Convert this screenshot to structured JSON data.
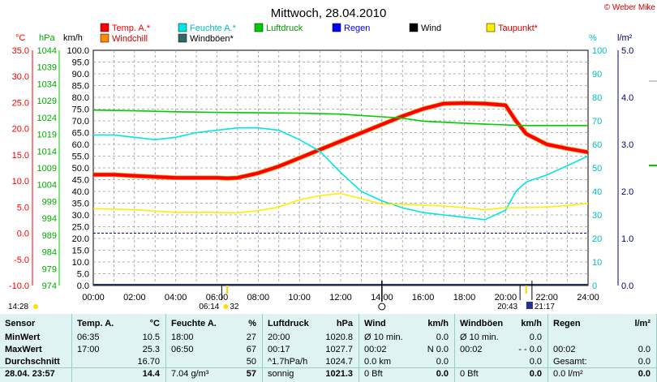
{
  "title": "Mittwoch, 28.04.2010",
  "copyright": "© Weber Mike",
  "legend": [
    {
      "label": "Temp. A.*",
      "color": "#ff0000"
    },
    {
      "label": "Feuchte A.*",
      "color": "#00e5e5"
    },
    {
      "label": "Luftdruck",
      "color": "#00cc00"
    },
    {
      "label": "Regen",
      "color": "#0000ff"
    },
    {
      "label": "Wind",
      "color": "#000000"
    },
    {
      "label": "Taupunkt*",
      "color": "#ffee00"
    },
    {
      "label": "Windchill",
      "color": "#ff8800"
    },
    {
      "label": "Windböen*",
      "color": "#336666"
    }
  ],
  "units": {
    "temp": "°C",
    "pressure": "hPa",
    "wind": "km/h",
    "humidity": "%",
    "rain": "l/m²"
  },
  "chart_data": {
    "type": "line",
    "x_ticks": [
      "00:00",
      "02:00",
      "04:00",
      "06:00",
      "08:00",
      "10:00",
      "12:00",
      "14:00",
      "16:00",
      "18:00",
      "20:00",
      "22:00",
      "24:00"
    ],
    "temp_ticks": [
      "35.0",
      "30.0",
      "25.0",
      "20.0",
      "15.0",
      "10.0",
      "5.0",
      "0.0",
      "-5.0",
      "-10.0"
    ],
    "pressure_ticks": [
      "1044",
      "1039",
      "1034",
      "1029",
      "1024",
      "1019",
      "1014",
      "1009",
      "1004",
      "999",
      "994",
      "989",
      "984",
      "979",
      "974"
    ],
    "wind_ticks": [
      "100.0",
      "95.0",
      "90.0",
      "85.0",
      "80.0",
      "75.0",
      "70.0",
      "65.0",
      "60.0",
      "55.0",
      "50.0",
      "45.0",
      "40.0",
      "35.0",
      "30.0",
      "25.0",
      "20.0",
      "15.0",
      "10.0",
      "5.0",
      "0.0"
    ],
    "humidity_ticks": [
      "100",
      "90",
      "80",
      "70",
      "60",
      "50",
      "40",
      "30",
      "20",
      "10",
      "0"
    ],
    "rain_ticks": [
      "5.0",
      "4.0",
      "3.0",
      "2.0",
      "1.0",
      "0.0"
    ],
    "temp_range": [
      -10,
      35
    ],
    "hours": [
      0,
      1,
      2,
      3,
      4,
      5,
      6,
      6.5,
      7,
      8,
      9,
      10,
      11,
      12,
      13,
      14,
      15,
      16,
      17,
      18,
      19,
      20,
      21,
      22,
      23,
      24
    ],
    "series": [
      {
        "name": "Temp. A.*",
        "color": "#ff0000",
        "x": [
          0,
          1,
          2,
          3,
          4,
          5,
          6,
          6.5,
          7,
          8,
          9,
          10,
          11,
          12,
          13,
          14,
          15,
          16,
          17,
          18,
          19,
          20,
          20.5,
          21,
          22,
          23,
          24
        ],
        "values": [
          11.2,
          11.2,
          11.0,
          10.8,
          10.6,
          10.6,
          10.6,
          10.5,
          10.6,
          11.5,
          12.8,
          14.4,
          16.0,
          17.6,
          19.2,
          20.8,
          22.4,
          23.8,
          24.8,
          24.9,
          24.8,
          24.5,
          21.5,
          19.0,
          17.0,
          16.2,
          15.5
        ]
      },
      {
        "name": "Feuchte A.*",
        "color": "#00e5e5",
        "x": [
          0,
          1,
          2,
          3,
          4,
          5,
          6,
          7,
          8,
          9,
          10,
          11,
          12,
          13,
          14,
          15,
          16,
          17,
          18,
          19,
          20,
          20.5,
          21,
          22,
          23,
          24
        ],
        "values": [
          64,
          64,
          63,
          62,
          63,
          65,
          66,
          67,
          67,
          66,
          62,
          57,
          48,
          40,
          36,
          33,
          31,
          30,
          29,
          28,
          32,
          40,
          44,
          47,
          51,
          55
        ]
      },
      {
        "name": "Luftdruck",
        "color": "#00cc00",
        "x": [
          0,
          2,
          4,
          6,
          8,
          10,
          12,
          13,
          14,
          15,
          16,
          17,
          18,
          19,
          20,
          21,
          22,
          23,
          24
        ],
        "values": [
          1026.2,
          1026.0,
          1025.7,
          1025.5,
          1025.4,
          1025.3,
          1025.0,
          1024.6,
          1024.2,
          1023.8,
          1022.9,
          1022.6,
          1022.3,
          1022.0,
          1021.8,
          1021.6,
          1021.6,
          1021.6,
          1021.6
        ]
      },
      {
        "name": "Taupunkt*",
        "color": "#ffee00",
        "x": [
          0,
          2,
          4,
          6,
          7,
          8,
          9,
          10,
          11,
          12,
          13,
          14,
          15,
          16,
          17,
          18,
          19,
          20,
          21,
          22,
          23,
          24
        ],
        "values": [
          4.7,
          4.5,
          4.0,
          4.0,
          3.9,
          4.3,
          5.0,
          6.4,
          7.2,
          7.6,
          6.6,
          5.6,
          5.5,
          5.4,
          5.2,
          4.9,
          4.5,
          4.9,
          4.9,
          5.0,
          5.3,
          5.7
        ]
      }
    ],
    "wind_speed_gusts": 0,
    "rain_line": 0
  },
  "time_marks": {
    "left": "14:28",
    "sunrise": "06:14",
    "sunrise_ext": "32",
    "noon": "14:00",
    "sunset": "20:43",
    "moon": "21:17"
  },
  "table": {
    "columns": [
      {
        "header": "Sensor",
        "rows": [
          "MinWert",
          "MaxWert",
          "Durchschnitt"
        ],
        "footer": "28.04. 23:57"
      },
      {
        "header": "Temp. A.",
        "unit": "°C",
        "rows": [
          [
            "06:35",
            "10.5"
          ],
          [
            "17:00",
            "25.3"
          ],
          [
            "",
            "16.70"
          ]
        ],
        "footer": "14.4"
      },
      {
        "header": "Feuchte A.",
        "unit": "%",
        "rows": [
          [
            "18:00",
            "27"
          ],
          [
            "06:50",
            "67"
          ],
          [
            "",
            "50"
          ]
        ],
        "footer_left": "7.04 g/m³",
        "footer": "57"
      },
      {
        "header": "Luftdruck",
        "unit": "hPa",
        "rows": [
          [
            "20:00",
            "1020.8"
          ],
          [
            "00:17",
            "1027.7"
          ],
          [
            "^1.7hPa/h",
            "1024.7"
          ]
        ],
        "footer_left": "sonnig",
        "footer": "1021.3"
      },
      {
        "header": "Wind",
        "unit": "km/h",
        "rows": [
          [
            "Ø 10 min.",
            "0.0"
          ],
          [
            "00:02",
            "N  0.0"
          ],
          [
            "0.0 km",
            "0.0"
          ]
        ],
        "footer_left": "0 Bft",
        "footer": "0.0"
      },
      {
        "header": "Windböen",
        "unit": "km/h",
        "rows": [
          [
            "Ø 10 min.",
            "0.0"
          ],
          [
            "00:02",
            "- -  0.0"
          ],
          [
            "",
            "0.0"
          ]
        ],
        "footer_left": "0 Bft",
        "footer": "0.0"
      },
      {
        "header": "Regen",
        "unit": "l/m²",
        "rows": [
          [
            "",
            ""
          ],
          [
            "00:02",
            "0.0"
          ],
          [
            "Gesamt:",
            "0.0"
          ]
        ],
        "footer_left": "0.0 l/m²",
        "footer": "0.0"
      }
    ]
  }
}
